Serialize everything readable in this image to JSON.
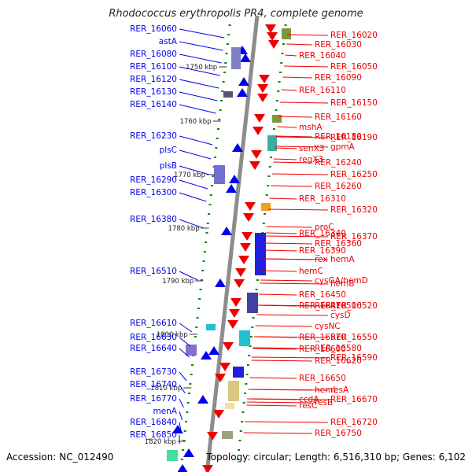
{
  "title": "Rhodococcus erythropolis PR4, complete genome",
  "footer": {
    "accession": "Accession: NC_012490",
    "topology": "Topology: circular; Length: 6,516,310 bp; Genes: 6,102"
  },
  "colors": {
    "left_strand": "#0000ee",
    "right_strand": "#ee0000",
    "backbone": "#8c8c8c",
    "dots": "#008800"
  },
  "scale_ticks": [
    "1750 kbp",
    "1760 kbp",
    "1770 kbp",
    "1780 kbp",
    "1790 kbp",
    "1800 kbp",
    "1810 kbp",
    "1820 kbp"
  ],
  "left_labels": [
    "RER_16060",
    "astA",
    "RER_16080",
    "RER_16100",
    "RER_16120",
    "RER_16130",
    "RER_16140",
    "RER_16230",
    "plsC",
    "plsB",
    "RER_16290",
    "RER_16300",
    "RER_16380",
    "RER_16510",
    "RER_16610",
    "RER_16630",
    "RER_16640",
    "RER_16730",
    "RER_16740",
    "RER_16770",
    "menA",
    "RER_16840",
    "RER_16850"
  ],
  "right_labels": [
    "RER_16020",
    "RER_16030",
    "RER_16040",
    "RER_16050",
    "RER_16090",
    "RER_16110",
    "RER_16150",
    "RER_16160",
    "mshA",
    "RER_16190",
    "RER_16180",
    "senX3",
    "gpmA",
    "RER_16240",
    "regX3",
    "RER_16250",
    "RER_16260",
    "RER_16310",
    "RER_16320",
    "proC",
    "RER_16340",
    "RER_16370",
    "RER_16360",
    "RER_16390",
    "hemA",
    "rex",
    "hemC",
    "hemB",
    "cysGA/hemD",
    "RER_16450",
    "RER_16520",
    "RER_16500",
    "RER_16470",
    "cysD",
    "cysNC",
    "RER_16570",
    "RER_16550",
    "RER_16580",
    "RER_16600",
    "RER_16590",
    "RER_16620",
    "RER_16650",
    "resA",
    "hemL",
    "ccdA",
    "RER_16670",
    "resB",
    "resC",
    "RER_16720",
    "RER_16750"
  ]
}
